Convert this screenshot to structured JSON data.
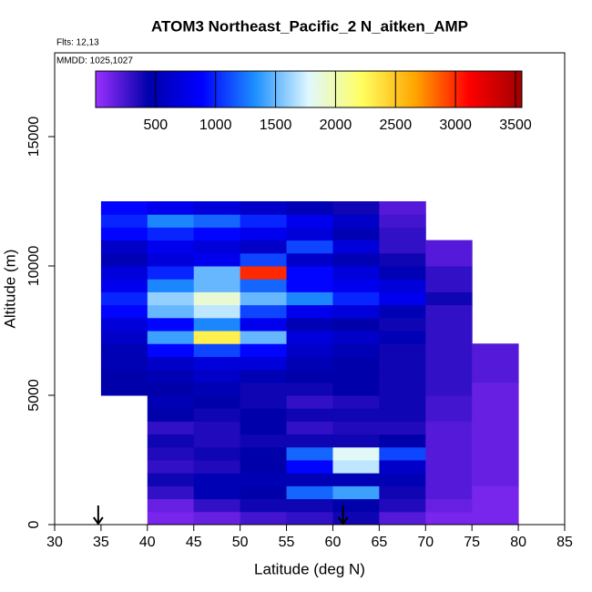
{
  "chart_data": {
    "type": "heatmap",
    "title": "ATOM3 Northeast_Pacific_2 N_aitken_AMP",
    "flights": "Flts: 12,13",
    "dates": "MMDD: 1025,1027",
    "xlabel": "Latitude (deg N)",
    "ylabel": "Altitude (m)",
    "xlim": [
      30,
      85
    ],
    "ylim": [
      0,
      18240
    ],
    "xticks": [
      30,
      35,
      40,
      45,
      50,
      55,
      60,
      65,
      70,
      75,
      80,
      85
    ],
    "yticks": [
      0,
      5000,
      10000,
      15000
    ],
    "x_bins": [
      35,
      40,
      45,
      50,
      55,
      60,
      65,
      70,
      75,
      80
    ],
    "y_bins": [
      0,
      500,
      1000,
      1500,
      2000,
      2500,
      3000,
      3500,
      4000,
      4500,
      5000,
      5500,
      6000,
      6500,
      7000,
      7500,
      8000,
      8500,
      9000,
      9500,
      10000,
      10500,
      11000,
      11500,
      12000,
      12500
    ],
    "z": [
      [
        null,
        100,
        150,
        250,
        300,
        400,
        200,
        100,
        100
      ],
      [
        null,
        150,
        300,
        400,
        400,
        450,
        350,
        150,
        100
      ],
      [
        null,
        300,
        500,
        450,
        1200,
        1400,
        400,
        200,
        100
      ],
      [
        null,
        400,
        500,
        500,
        500,
        500,
        500,
        200,
        150
      ],
      [
        null,
        300,
        350,
        450,
        900,
        1700,
        600,
        200,
        150
      ],
      [
        null,
        350,
        400,
        450,
        1200,
        1800,
        1100,
        200,
        150
      ],
      [
        null,
        400,
        350,
        400,
        400,
        400,
        450,
        200,
        150
      ],
      [
        null,
        300,
        350,
        450,
        300,
        350,
        350,
        200,
        150
      ],
      [
        null,
        450,
        400,
        450,
        400,
        400,
        400,
        250,
        150
      ],
      [
        null,
        500,
        450,
        400,
        300,
        350,
        400,
        250,
        150
      ],
      [
        450,
        450,
        500,
        400,
        400,
        450,
        400,
        300,
        150
      ],
      [
        450,
        500,
        600,
        500,
        450,
        450,
        400,
        300,
        200
      ],
      [
        500,
        600,
        700,
        700,
        500,
        450,
        400,
        300,
        200
      ],
      [
        500,
        900,
        1100,
        900,
        600,
        500,
        400,
        300,
        200
      ],
      [
        600,
        1400,
        2300,
        1500,
        700,
        600,
        500,
        300,
        null
      ],
      [
        700,
        900,
        1300,
        800,
        500,
        450,
        400,
        300,
        null
      ],
      [
        900,
        1500,
        1700,
        1100,
        800,
        700,
        500,
        300,
        null
      ],
      [
        1000,
        1600,
        1900,
        1500,
        1300,
        1000,
        800,
        400,
        null
      ],
      [
        800,
        1300,
        1500,
        1200,
        900,
        800,
        700,
        300,
        null
      ],
      [
        700,
        1000,
        1500,
        3000,
        900,
        700,
        500,
        300,
        null
      ],
      [
        500,
        700,
        800,
        1100,
        600,
        500,
        400,
        200,
        null
      ],
      [
        600,
        800,
        700,
        600,
        1100,
        700,
        300,
        200,
        null
      ],
      [
        900,
        1000,
        900,
        800,
        700,
        500,
        300,
        null,
        null
      ],
      [
        1000,
        1300,
        1200,
        1000,
        800,
        600,
        250,
        null,
        null
      ],
      [
        900,
        800,
        700,
        600,
        500,
        400,
        200,
        null,
        null
      ]
    ],
    "zlim": [
      0,
      3553
    ],
    "zticks": [
      500,
      1000,
      1500,
      2000,
      2500,
      3000,
      3500
    ],
    "colors": [
      "#9b30ff",
      "#0000aa",
      "#0000ff",
      "#1e90ff",
      "#e0f8ff",
      "#ffff60",
      "#ffa500",
      "#ff0000",
      "#a00000"
    ],
    "arrows_x": [
      34.7,
      61.1
    ]
  }
}
